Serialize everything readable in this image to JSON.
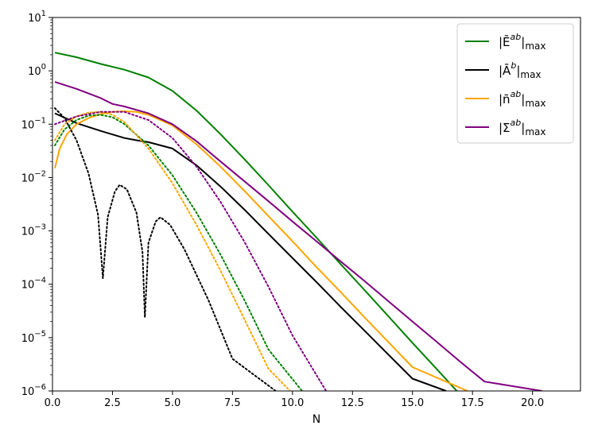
{
  "chart_data": {
    "type": "line",
    "title": "",
    "xlabel": "N",
    "ylabel": "",
    "xlim": [
      0,
      22
    ],
    "ylim": [
      1e-06,
      10
    ],
    "yscale": "log",
    "grid": false,
    "legend_position": "upper right",
    "x_ticks": [
      "0.0",
      "2.5",
      "5.0",
      "7.5",
      "10.0",
      "12.5",
      "15.0",
      "17.5",
      "20.0"
    ],
    "y_ticks": [
      {
        "base": "10",
        "exp": "1"
      },
      {
        "base": "10",
        "exp": "0"
      },
      {
        "base": "10",
        "exp": "−1"
      },
      {
        "base": "10",
        "exp": "−2"
      },
      {
        "base": "10",
        "exp": "−3"
      },
      {
        "base": "10",
        "exp": "−4"
      },
      {
        "base": "10",
        "exp": "−5"
      },
      {
        "base": "10",
        "exp": "−6"
      }
    ],
    "series": [
      {
        "name": "|Ēab|max",
        "color": "#008000",
        "style": "solid",
        "legend": {
          "main": "|Ē",
          "sup": "ab",
          "close": "|",
          "sub": "max"
        },
        "points": [
          [
            0.1,
            2.2
          ],
          [
            1,
            1.8
          ],
          [
            2,
            1.35
          ],
          [
            3,
            1.05
          ],
          [
            4,
            0.75
          ],
          [
            5,
            0.42
          ],
          [
            6,
            0.18
          ],
          [
            7,
            0.065
          ],
          [
            8,
            0.022
          ],
          [
            9,
            0.0072
          ],
          [
            10,
            0.0023
          ],
          [
            11,
            0.00075
          ],
          [
            12,
            0.00024
          ],
          [
            13,
            7.8e-05
          ],
          [
            14,
            2.5e-05
          ],
          [
            15,
            8e-06
          ],
          [
            16,
            2.6e-06
          ],
          [
            17,
            8.4e-07
          ],
          [
            18,
            2.7e-07
          ],
          [
            19.2,
            1e-06
          ]
        ]
      },
      {
        "name": "|Āb|max",
        "color": "#000000",
        "style": "solid",
        "legend": {
          "main": "|Ā",
          "sup": "b",
          "close": "|",
          "sub": "max"
        },
        "points": [
          [
            0.1,
            0.16
          ],
          [
            1,
            0.105
          ],
          [
            2,
            0.075
          ],
          [
            3,
            0.055
          ],
          [
            3.5,
            0.05
          ],
          [
            4,
            0.046
          ],
          [
            5,
            0.035
          ],
          [
            6,
            0.017
          ],
          [
            7,
            0.0068
          ],
          [
            8,
            0.0025
          ],
          [
            9,
            0.00088
          ],
          [
            10,
            0.00031
          ],
          [
            11,
            0.00011
          ],
          [
            12,
            3.8e-05
          ],
          [
            13,
            1.35e-05
          ],
          [
            14,
            4.8e-06
          ],
          [
            15,
            1.7e-06
          ],
          [
            16.4,
            1e-06
          ]
        ]
      },
      {
        "name": "|n̄ab|max",
        "color": "#FFA500",
        "style": "solid",
        "legend": {
          "main": "|n̄",
          "sup": "ab",
          "close": "|",
          "sub": "max"
        },
        "points": [
          [
            0.1,
            0.015
          ],
          [
            0.3,
            0.035
          ],
          [
            0.6,
            0.065
          ],
          [
            1,
            0.1
          ],
          [
            1.5,
            0.13
          ],
          [
            2,
            0.155
          ],
          [
            2.5,
            0.17
          ],
          [
            3,
            0.175
          ],
          [
            3.5,
            0.17
          ],
          [
            4,
            0.15
          ],
          [
            5,
            0.095
          ],
          [
            6,
            0.042
          ],
          [
            7,
            0.016
          ],
          [
            8,
            0.0056
          ],
          [
            9,
            0.0019
          ],
          [
            10,
            0.00064
          ],
          [
            11,
            0.00021
          ],
          [
            12,
            7.2e-05
          ],
          [
            13,
            2.4e-05
          ],
          [
            14,
            8.2e-06
          ],
          [
            15,
            2.8e-06
          ],
          [
            17.3,
            1e-06
          ]
        ]
      },
      {
        "name": "|Σ̄ab|max",
        "color": "#800080",
        "style": "solid",
        "legend": {
          "main": "|Σ̄",
          "sup": "ab",
          "close": "|",
          "sub": "max"
        },
        "points": [
          [
            0.1,
            0.62
          ],
          [
            1,
            0.46
          ],
          [
            2,
            0.31
          ],
          [
            2.5,
            0.24
          ],
          [
            3,
            0.215
          ],
          [
            4,
            0.16
          ],
          [
            5,
            0.1
          ],
          [
            6,
            0.048
          ],
          [
            7,
            0.02
          ],
          [
            8,
            0.0085
          ],
          [
            9,
            0.0036
          ],
          [
            10,
            0.0015
          ],
          [
            11,
            0.00064
          ],
          [
            12,
            0.00027
          ],
          [
            13,
            0.000115
          ],
          [
            14,
            4.8e-05
          ],
          [
            15,
            2e-05
          ],
          [
            16,
            8.4e-06
          ],
          [
            17,
            3.5e-06
          ],
          [
            18,
            1.5e-06
          ],
          [
            20.4,
            1e-06
          ]
        ]
      },
      {
        "name": "",
        "color": "#008000",
        "style": "dotted",
        "points": [
          [
            0.1,
            0.04
          ],
          [
            0.5,
            0.08
          ],
          [
            1,
            0.12
          ],
          [
            1.5,
            0.145
          ],
          [
            2,
            0.15
          ],
          [
            2.5,
            0.135
          ],
          [
            3,
            0.1
          ],
          [
            4,
            0.04
          ],
          [
            5,
            0.011
          ],
          [
            6,
            0.0022
          ],
          [
            7,
            0.00036
          ],
          [
            8,
            5e-05
          ],
          [
            9,
            6e-06
          ],
          [
            10.4,
            1e-06
          ]
        ]
      },
      {
        "name": "",
        "color": "#FFA500",
        "style": "dotted",
        "points": [
          [
            0.1,
            0.05
          ],
          [
            0.5,
            0.1
          ],
          [
            1,
            0.14
          ],
          [
            1.5,
            0.165
          ],
          [
            2,
            0.17
          ],
          [
            2.5,
            0.15
          ],
          [
            3,
            0.11
          ],
          [
            4,
            0.035
          ],
          [
            5,
            0.0078
          ],
          [
            6,
            0.0013
          ],
          [
            7,
            0.00018
          ],
          [
            8,
            2.2e-05
          ],
          [
            9,
            2.6e-06
          ],
          [
            9.9,
            1e-06
          ]
        ]
      },
      {
        "name": "",
        "color": "#800080",
        "style": "dotted",
        "points": [
          [
            0.1,
            0.1
          ],
          [
            1,
            0.14
          ],
          [
            2,
            0.17
          ],
          [
            3,
            0.17
          ],
          [
            4,
            0.12
          ],
          [
            5,
            0.055
          ],
          [
            6,
            0.016
          ],
          [
            7,
            0.0035
          ],
          [
            8,
            0.00062
          ],
          [
            9,
            9e-05
          ],
          [
            10,
            1.1e-05
          ],
          [
            11.4,
            1e-06
          ]
        ]
      },
      {
        "name": "",
        "color": "#000000",
        "style": "dotted",
        "points": [
          [
            0.1,
            0.2
          ],
          [
            0.5,
            0.13
          ],
          [
            1,
            0.05
          ],
          [
            1.5,
            0.012
          ],
          [
            1.9,
            0.002
          ],
          [
            2.1,
            0.00013
          ],
          [
            2.3,
            0.0018
          ],
          [
            2.6,
            0.0055
          ],
          [
            2.8,
            0.0073
          ],
          [
            3.1,
            0.006
          ],
          [
            3.5,
            0.0022
          ],
          [
            3.75,
            0.0004
          ],
          [
            3.85,
            2.4e-05
          ],
          [
            4,
            0.0006
          ],
          [
            4.3,
            0.0015
          ],
          [
            4.5,
            0.0018
          ],
          [
            4.9,
            0.0013
          ],
          [
            5.5,
            0.00045
          ],
          [
            6.5,
            5e-05
          ],
          [
            7.5,
            4e-06
          ],
          [
            9.3,
            1e-06
          ]
        ]
      }
    ]
  }
}
